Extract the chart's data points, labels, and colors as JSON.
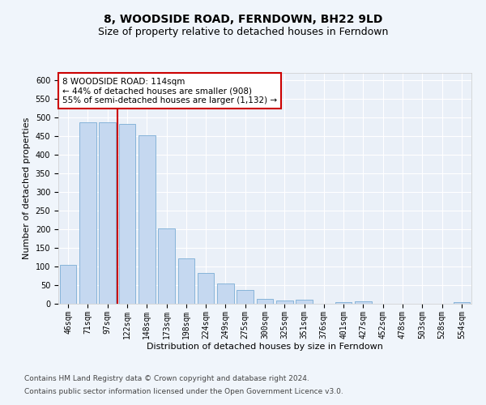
{
  "title": "8, WOODSIDE ROAD, FERNDOWN, BH22 9LD",
  "subtitle": "Size of property relative to detached houses in Ferndown",
  "xlabel": "Distribution of detached houses by size in Ferndown",
  "ylabel": "Number of detached properties",
  "categories": [
    "46sqm",
    "71sqm",
    "97sqm",
    "122sqm",
    "148sqm",
    "173sqm",
    "198sqm",
    "224sqm",
    "249sqm",
    "275sqm",
    "300sqm",
    "325sqm",
    "351sqm",
    "376sqm",
    "401sqm",
    "427sqm",
    "452sqm",
    "478sqm",
    "503sqm",
    "528sqm",
    "554sqm"
  ],
  "values": [
    105,
    487,
    487,
    482,
    452,
    202,
    122,
    82,
    55,
    37,
    13,
    8,
    10,
    1,
    5,
    6,
    0,
    0,
    0,
    0,
    5
  ],
  "bar_color": "#c5d8f0",
  "bar_edge_color": "#7aadd4",
  "vline_color": "#cc0000",
  "annotation_text": "8 WOODSIDE ROAD: 114sqm\n← 44% of detached houses are smaller (908)\n55% of semi-detached houses are larger (1,132) →",
  "annotation_box_color": "#ffffff",
  "annotation_box_edge": "#cc0000",
  "ylim": [
    0,
    620
  ],
  "yticks": [
    0,
    50,
    100,
    150,
    200,
    250,
    300,
    350,
    400,
    450,
    500,
    550,
    600
  ],
  "footer_line1": "Contains HM Land Registry data © Crown copyright and database right 2024.",
  "footer_line2": "Contains public sector information licensed under the Open Government Licence v3.0.",
  "bg_color": "#f0f5fb",
  "plot_bg_color": "#eaf0f8",
  "grid_color": "#ffffff",
  "title_fontsize": 10,
  "subtitle_fontsize": 9,
  "axis_label_fontsize": 8,
  "tick_fontsize": 7,
  "footer_fontsize": 6.5,
  "annotation_fontsize": 7.5
}
